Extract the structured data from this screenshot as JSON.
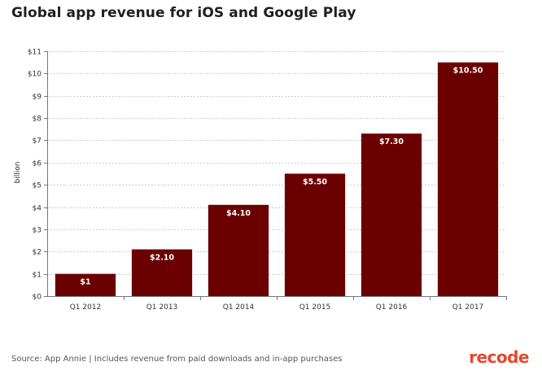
{
  "title": "Global app revenue for iOS and Google Play",
  "source": "Source: App Annie | Includes revenue from paid downloads and in-app purchases",
  "logo": "recode",
  "colors": {
    "bar": "#6b0000",
    "grid": "#cccccc",
    "axis": "#777777",
    "logo": "#e8462e"
  },
  "chart_data": {
    "type": "bar",
    "title": "Global app revenue for iOS and Google Play",
    "xlabel": "",
    "ylabel": "billion",
    "categories": [
      "Q1 2012",
      "Q1 2013",
      "Q1 2014",
      "Q1 2015",
      "Q1 2016",
      "Q1 2017"
    ],
    "values": [
      1,
      2.1,
      4.1,
      5.5,
      7.3,
      10.5
    ],
    "value_labels": [
      "$1",
      "$2.10",
      "$4.10",
      "$5.50",
      "$7.30",
      "$10.50"
    ],
    "ylim": [
      0,
      11
    ],
    "yticks": [
      0,
      1,
      2,
      3,
      4,
      5,
      6,
      7,
      8,
      9,
      10,
      11
    ],
    "ytick_labels": [
      "$0",
      "$1",
      "$2",
      "$3",
      "$4",
      "$5",
      "$6",
      "$7",
      "$8",
      "$9",
      "$10",
      "$11"
    ],
    "grid": true,
    "legend": "none"
  }
}
